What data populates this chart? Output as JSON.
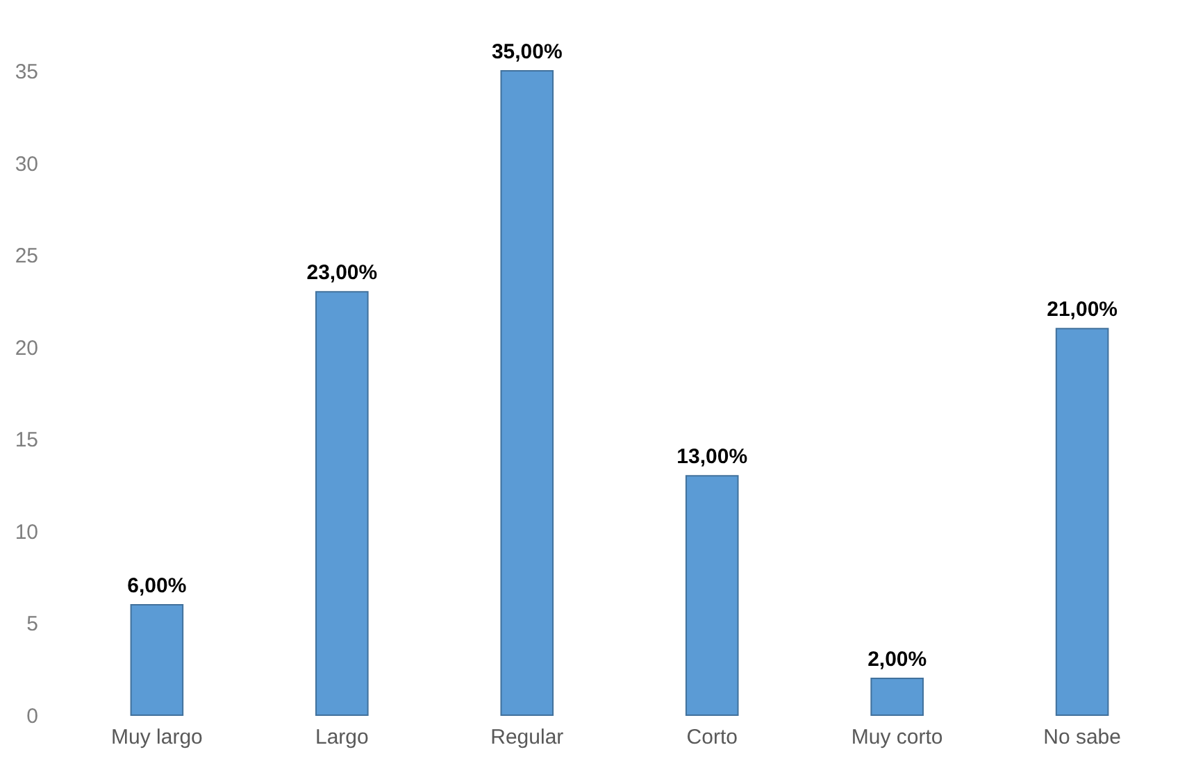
{
  "chart_data": {
    "type": "bar",
    "categories": [
      "Muy largo",
      "Largo",
      "Regular",
      "Corto",
      "Muy corto",
      "No sabe"
    ],
    "values": [
      6,
      23,
      35,
      13,
      2,
      21
    ],
    "value_labels": [
      "6,00%",
      "23,00%",
      "35,00%",
      "13,00%",
      "2,00%",
      "21,00%"
    ],
    "color": "#5b9bd5",
    "ylim": [
      0,
      35
    ],
    "yticks": [
      0,
      5,
      10,
      15,
      20,
      25,
      30,
      35
    ],
    "grid": false
  }
}
